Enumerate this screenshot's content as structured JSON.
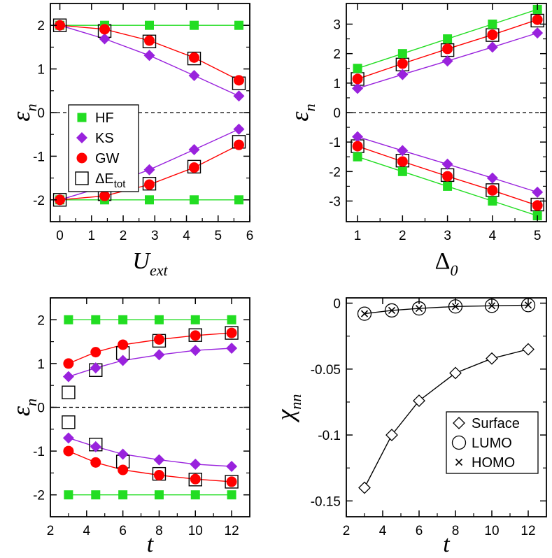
{
  "colors": {
    "HF": "#22dd22",
    "KS": "#9922dd",
    "GW": "#ff0000",
    "black": "#000000"
  },
  "chart_data": [
    {
      "id": "p1",
      "type": "line",
      "ylabel_main": "ε",
      "ylabel_sub": "n",
      "xlabel_main": "U",
      "xlabel_sub": "ext",
      "xlim": [
        -0.3,
        6
      ],
      "ylim": [
        -2.5,
        2.5
      ],
      "xticks": [
        0,
        1,
        2,
        3,
        4,
        5,
        6
      ],
      "xtick_labels": [
        "0",
        "1",
        "2",
        "3",
        "4",
        "5",
        "6"
      ],
      "yticks": [
        -2,
        -1,
        0,
        1,
        2
      ],
      "ytick_labels": [
        "-2",
        "-1",
        "0",
        "1",
        "2"
      ],
      "x": [
        0,
        1.414,
        2.828,
        4.243,
        5.657
      ],
      "series": [
        {
          "name": "HF",
          "upper": [
            2,
            2,
            2,
            2,
            2
          ],
          "lower": [
            -2,
            -2,
            -2,
            -2,
            -2
          ]
        },
        {
          "name": "KS",
          "upper": [
            2,
            1.69,
            1.31,
            0.85,
            0.38
          ],
          "lower": [
            -2,
            -1.69,
            -1.31,
            -0.85,
            -0.38
          ]
        },
        {
          "name": "GW",
          "upper": [
            2,
            1.91,
            1.65,
            1.26,
            0.74
          ],
          "lower": [
            -2,
            -1.91,
            -1.65,
            -1.26,
            -0.74
          ]
        },
        {
          "name": "ΔEtot",
          "upper": [
            2,
            1.87,
            1.63,
            1.24,
            0.67
          ],
          "lower": [
            -2,
            -1.87,
            -1.63,
            -1.24,
            -0.67
          ]
        }
      ],
      "legend": {
        "placement": "left-middle",
        "entries": [
          {
            "label": "HF",
            "marker": "square-filled",
            "color": "#22dd22"
          },
          {
            "label": "KS",
            "marker": "diamond-filled",
            "color": "#9922dd"
          },
          {
            "label": "GW",
            "marker": "circle-filled",
            "color": "#ff0000"
          },
          {
            "label": "ΔE",
            "label_sub": "tot",
            "marker": "square-open",
            "color": "#000000"
          }
        ]
      }
    },
    {
      "id": "p2",
      "type": "line",
      "ylabel_main": "ε",
      "ylabel_sub": "n",
      "xlabel_main": "Δ",
      "xlabel_sub": "0",
      "xlim": [
        0.75,
        5.2
      ],
      "ylim": [
        -3.7,
        3.7
      ],
      "xticks": [
        1,
        2,
        3,
        4,
        5
      ],
      "xtick_labels": [
        "1",
        "2",
        "3",
        "4",
        "5"
      ],
      "yticks": [
        -3,
        -2,
        -1,
        0,
        1,
        2,
        3
      ],
      "ytick_labels": [
        "-3",
        "-2",
        "-1",
        "0",
        "1",
        "2",
        "3"
      ],
      "x": [
        1,
        2,
        3,
        4,
        5
      ],
      "series": [
        {
          "name": "HF",
          "upper": [
            1.5,
            2.0,
            2.5,
            3.0,
            3.5
          ],
          "lower": [
            -1.5,
            -2.0,
            -2.5,
            -3.0,
            -3.5
          ]
        },
        {
          "name": "KS",
          "upper": [
            0.82,
            1.29,
            1.75,
            2.22,
            2.7
          ],
          "lower": [
            -0.82,
            -1.29,
            -1.75,
            -2.22,
            -2.7
          ]
        },
        {
          "name": "GW",
          "upper": [
            1.14,
            1.66,
            2.16,
            2.64,
            3.15
          ],
          "lower": [
            -1.14,
            -1.66,
            -2.16,
            -2.64,
            -3.15
          ]
        },
        {
          "name": "ΔEtot",
          "upper": [
            1.14,
            1.63,
            2.12,
            2.63,
            3.12
          ],
          "lower": [
            -1.14,
            -1.63,
            -2.12,
            -2.63,
            -3.12
          ]
        }
      ]
    },
    {
      "id": "p3",
      "type": "line",
      "ylabel_main": "ε",
      "ylabel_sub": "n",
      "xlabel_main": "t",
      "xlabel_sub": "",
      "xlim": [
        2,
        13
      ],
      "ylim": [
        -2.5,
        2.5
      ],
      "xticks": [
        2,
        4,
        6,
        8,
        10,
        12
      ],
      "xtick_labels": [
        "2",
        "4",
        "6",
        "8",
        "10",
        "12"
      ],
      "yticks": [
        -2,
        -1,
        0,
        1,
        2
      ],
      "ytick_labels": [
        "-2",
        "-1",
        "0",
        "1",
        "2"
      ],
      "x": [
        3,
        4.5,
        6,
        8,
        10,
        12
      ],
      "series": [
        {
          "name": "HF",
          "upper": [
            2,
            2,
            2,
            2,
            2,
            2
          ],
          "lower": [
            -2,
            -2,
            -2,
            -2,
            -2,
            -2
          ]
        },
        {
          "name": "KS",
          "upper": [
            0.7,
            0.9,
            1.07,
            1.2,
            1.3,
            1.35
          ],
          "lower": [
            -0.7,
            -0.9,
            -1.07,
            -1.2,
            -1.3,
            -1.35
          ]
        },
        {
          "name": "GW",
          "upper": [
            1.0,
            1.26,
            1.43,
            1.55,
            1.64,
            1.7
          ],
          "lower": [
            -1.0,
            -1.26,
            -1.43,
            -1.55,
            -1.64,
            -1.7
          ]
        },
        {
          "name": "ΔEtot",
          "upper": [
            0.34,
            0.85,
            1.24,
            1.52,
            1.65,
            1.7
          ],
          "lower": [
            -0.34,
            -0.85,
            -1.24,
            -1.52,
            -1.65,
            -1.7
          ]
        }
      ]
    },
    {
      "id": "p4",
      "type": "line",
      "ylabel_main": "χ",
      "ylabel_sub": "nn",
      "xlabel_main": "t",
      "xlabel_sub": "",
      "xlim": [
        2,
        13
      ],
      "ylim": [
        -0.162,
        0.004
      ],
      "xticks": [
        2,
        4,
        6,
        8,
        10,
        12
      ],
      "xtick_labels": [
        "2",
        "4",
        "6",
        "8",
        "10",
        "12"
      ],
      "yticks": [
        0,
        -0.05,
        -0.1,
        -0.15
      ],
      "ytick_labels": [
        "0",
        "-0.05",
        "-0.1",
        "-0.15"
      ],
      "x": [
        3,
        4.5,
        6,
        8,
        10,
        12
      ],
      "series": [
        {
          "name": "Surface",
          "values": [
            -0.14,
            -0.1,
            -0.074,
            -0.053,
            -0.042,
            -0.035
          ]
        },
        {
          "name": "LUMO",
          "values": [
            -0.008,
            -0.0055,
            -0.004,
            -0.0025,
            -0.002,
            -0.0015
          ]
        },
        {
          "name": "HOMO",
          "values": [
            -0.008,
            -0.0055,
            -0.004,
            -0.0025,
            -0.002,
            -0.0015
          ]
        }
      ],
      "legend": {
        "placement": "bottom-right",
        "entries": [
          {
            "label": "Surface",
            "marker": "diamond-open"
          },
          {
            "label": "LUMO",
            "marker": "circle-open"
          },
          {
            "label": "HOMO",
            "marker": "cross"
          }
        ]
      }
    }
  ]
}
